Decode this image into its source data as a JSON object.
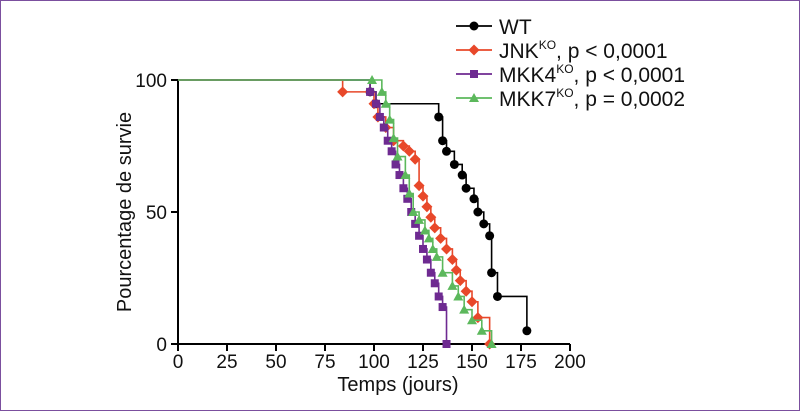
{
  "chart_data": {
    "type": "line",
    "step": true,
    "xlabel": "Temps (jours)",
    "ylabel": "Pourcentage de survie",
    "xlim": [
      0,
      200
    ],
    "ylim": [
      0,
      100
    ],
    "xticks": [
      "0",
      "25",
      "50",
      "75",
      "100",
      "125",
      "150",
      "175",
      "200"
    ],
    "yticks": [
      "0",
      "50",
      "100"
    ],
    "grid": false,
    "legend_position": "top-right",
    "series": [
      {
        "name": "WT",
        "legend": {
          "main": "WT",
          "sup": "",
          "suffix": ""
        },
        "color": "#000000",
        "marker": "circle",
        "x": [
          0,
          98,
          101,
          133,
          135,
          137,
          141,
          145,
          147,
          151,
          153,
          156,
          159,
          160,
          163,
          178
        ],
        "y": [
          100,
          95.5,
          91,
          86,
          77,
          73,
          68,
          64,
          59,
          55,
          50,
          45.5,
          41,
          27,
          18,
          5
        ]
      },
      {
        "name": "JNK",
        "legend": {
          "main": "JNK",
          "sup": "KO",
          "suffix": ", p < 0,0001"
        },
        "color": "#e8482a",
        "marker": "diamond",
        "x": [
          0,
          84,
          100,
          102,
          106,
          110,
          115,
          118,
          121,
          123,
          125,
          127,
          129,
          131,
          134,
          137,
          140,
          142,
          144,
          147,
          150,
          153,
          159
        ],
        "y": [
          100,
          95.5,
          91,
          86,
          82,
          77,
          75,
          73,
          70,
          60,
          56,
          52,
          48,
          44,
          40,
          36,
          32,
          28,
          24,
          20,
          16,
          10,
          0
        ]
      },
      {
        "name": "MKK4",
        "legend": {
          "main": "MKK4",
          "sup": "KO",
          "suffix": ", p < 0,0001"
        },
        "color": "#6e2a91",
        "marker": "square",
        "x": [
          0,
          98,
          101,
          103,
          105,
          107,
          109,
          111,
          113,
          115,
          117,
          119,
          121,
          123,
          125,
          127,
          129,
          131,
          133,
          135,
          137
        ],
        "y": [
          100,
          95.5,
          91,
          86,
          82,
          77,
          73,
          68,
          64,
          59,
          55,
          50,
          45.5,
          41,
          36,
          32,
          27,
          23,
          18,
          14,
          0
        ]
      },
      {
        "name": "MKK7",
        "legend": {
          "main": "MKK7",
          "sup": "KO",
          "suffix": ", p = 0,0002"
        },
        "color": "#5cb85c",
        "marker": "triangle",
        "x": [
          0,
          99,
          104,
          106,
          108,
          110,
          112,
          116,
          118,
          120,
          123,
          126,
          128,
          130,
          132,
          135,
          140,
          143,
          146,
          150,
          155,
          160
        ],
        "y": [
          100,
          100,
          95.5,
          91,
          85,
          78,
          71,
          64,
          57,
          50,
          47,
          43,
          40,
          36,
          33,
          27,
          22,
          18,
          13,
          9,
          5,
          0
        ]
      }
    ]
  }
}
